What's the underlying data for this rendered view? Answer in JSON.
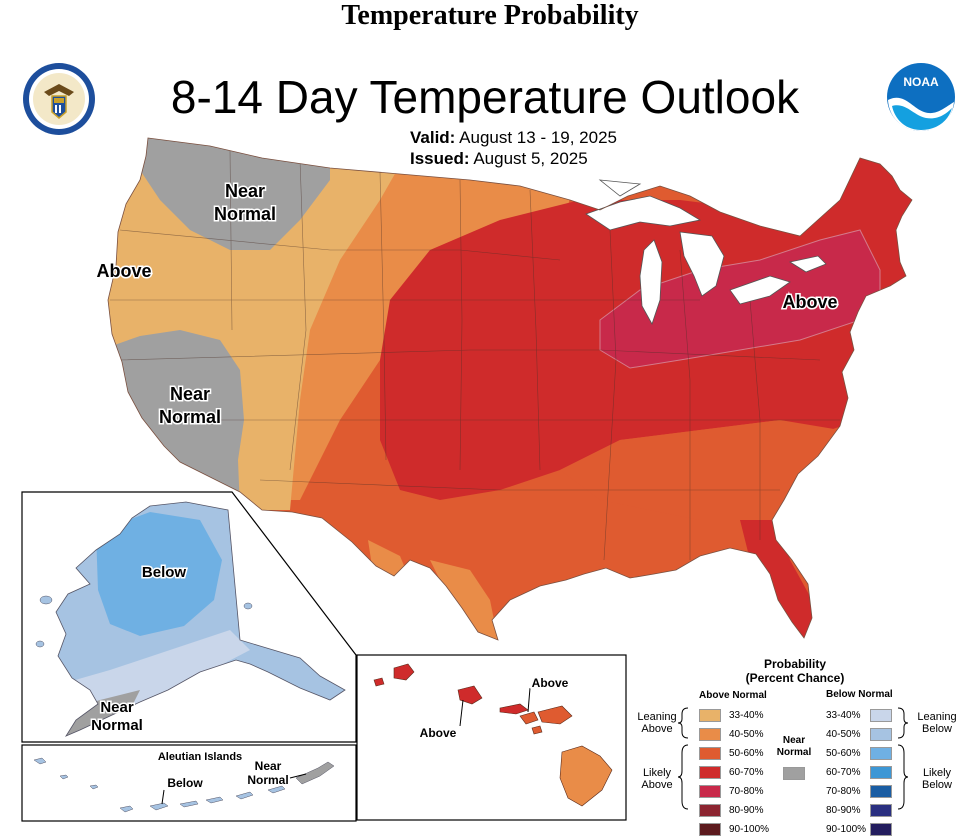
{
  "header": {
    "page_title": "Temperature Probability",
    "main_title": "8-14 Day Temperature Outlook",
    "valid_label": "Valid:",
    "valid_value": "August 13 - 19, 2025",
    "issued_label": "Issued:",
    "issued_value": "August 5, 2025"
  },
  "logos": {
    "left": "department-of-commerce-seal",
    "right": "noaa-logo",
    "noaa_text": "NOAA"
  },
  "map_labels": {
    "conus_near_normal_north": [
      "Near",
      "Normal"
    ],
    "conus_above_west": "Above",
    "conus_near_normal_southwest": [
      "Near",
      "Normal"
    ],
    "conus_above_east": "Above",
    "alaska_below": "Below",
    "alaska_near_normal": [
      "Near",
      "Normal"
    ],
    "aleutian_title": "Aleutian Islands",
    "aleutian_below": "Below",
    "aleutian_near_normal": [
      "Near",
      "Normal"
    ],
    "hawaii_above_1": "Above",
    "hawaii_above_2": "Above"
  },
  "legend": {
    "title": "Probability",
    "subtitle": "(Percent Chance)",
    "above_header": "Above Normal",
    "below_header": "Below Normal",
    "near_normal": [
      "Near",
      "Normal"
    ],
    "leaning_above": [
      "Leaning",
      "Above"
    ],
    "likely_above": [
      "Likely",
      "Above"
    ],
    "leaning_below": [
      "Leaning",
      "Below"
    ],
    "likely_below": [
      "Likely",
      "Below"
    ],
    "above_bins": [
      {
        "range": "33-40%",
        "color": "#e8b269"
      },
      {
        "range": "40-50%",
        "color": "#e98c48"
      },
      {
        "range": "50-60%",
        "color": "#df5b30"
      },
      {
        "range": "60-70%",
        "color": "#cf2b2b"
      },
      {
        "range": "70-80%",
        "color": "#c8294a"
      },
      {
        "range": "80-90%",
        "color": "#8c2430"
      },
      {
        "range": "90-100%",
        "color": "#5c1a1e"
      }
    ],
    "below_bins": [
      {
        "range": "33-40%",
        "color": "#c9d6ea"
      },
      {
        "range": "40-50%",
        "color": "#a6c3e2"
      },
      {
        "range": "50-60%",
        "color": "#6fb0e3"
      },
      {
        "range": "60-70%",
        "color": "#3d97d5"
      },
      {
        "range": "70-80%",
        "color": "#1a5da3"
      },
      {
        "range": "80-90%",
        "color": "#2a2f80"
      },
      {
        "range": "90-100%",
        "color": "#231d5e"
      }
    ],
    "near_normal_color": "#a0a0a0"
  }
}
